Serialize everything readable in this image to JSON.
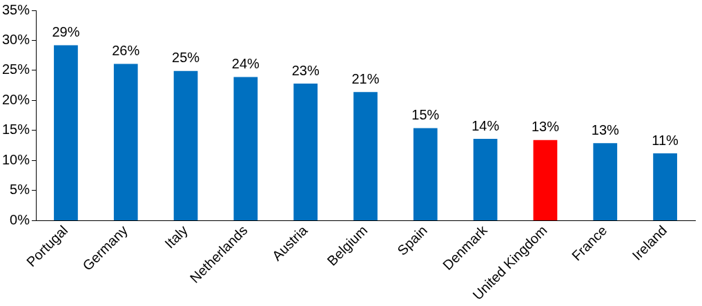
{
  "chart_data": {
    "type": "bar",
    "categories": [
      "Portugal",
      "Germany",
      "Italy",
      "Netherlands",
      "Austria",
      "Belgium",
      "Spain",
      "Denmark",
      "United Kingdom",
      "France",
      "Ireland"
    ],
    "values": [
      29.2,
      26.1,
      24.9,
      23.9,
      22.8,
      21.4,
      15.4,
      13.6,
      13.4,
      12.9,
      11.2
    ],
    "value_labels": [
      "29%",
      "26%",
      "25%",
      "24%",
      "23%",
      "21%",
      "15%",
      "14%",
      "13%",
      "13%",
      "11%"
    ],
    "colors": [
      "#0070c0",
      "#0070c0",
      "#0070c0",
      "#0070c0",
      "#0070c0",
      "#0070c0",
      "#0070c0",
      "#0070c0",
      "#ff0000",
      "#0070c0",
      "#0070c0"
    ],
    "ylim": [
      0,
      35
    ],
    "yticks": [
      {
        "value": 0,
        "label": "0%"
      },
      {
        "value": 5,
        "label": "5%"
      },
      {
        "value": 10,
        "label": "10%"
      },
      {
        "value": 15,
        "label": "15%"
      },
      {
        "value": 20,
        "label": "20%"
      },
      {
        "value": 25,
        "label": "25%"
      },
      {
        "value": 30,
        "label": "30%"
      },
      {
        "value": 35,
        "label": "35%"
      }
    ],
    "grid": false,
    "legend": false
  }
}
